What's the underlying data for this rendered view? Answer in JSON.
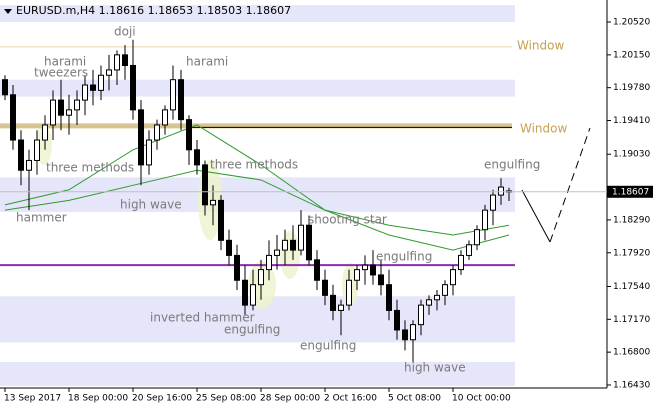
{
  "chart_data": {
    "type": "candlestick",
    "title": "EURUSD.m,H4 1.18616 1.18653 1.18503 1.18607",
    "categories": [
      "13 Sep 2017",
      null,
      null,
      null,
      null,
      null,
      null,
      null,
      "18 Sep 00:00",
      null,
      null,
      null,
      null,
      null,
      null,
      null,
      "20 Sep 16:00",
      null,
      null,
      null,
      null,
      null,
      null,
      null,
      "25 Sep 08:00",
      null,
      null,
      null,
      null,
      null,
      null,
      null,
      "28 Sep 00:00",
      null,
      null,
      null,
      null,
      null,
      null,
      null,
      "2 Oct 16:00",
      null,
      null,
      null,
      null,
      null,
      null,
      null,
      "5 Oct 08:00",
      null,
      null,
      null,
      null,
      null,
      null,
      null,
      "10 Oct 00:00",
      null,
      null,
      null,
      null,
      null,
      null,
      null
    ],
    "open": [
      1.1987,
      1.197,
      1.1919,
      1.1885,
      1.1896,
      1.1919,
      1.1936,
      1.1964,
      1.1947,
      1.1953,
      1.1964,
      1.1981,
      1.1975,
      1.1992,
      1.1998,
      1.2015,
      1.2003,
      1.1953,
      1.1891,
      1.1919,
      1.1936,
      1.1953,
      1.1987,
      1.1942,
      1.1908,
      1.1891,
      1.1846,
      1.1851,
      1.1806,
      1.1789,
      1.1761,
      1.1733,
      1.1756,
      1.1773,
      1.1789,
      1.1795,
      1.1806,
      1.1795,
      1.1823,
      1.1784,
      1.1761,
      1.1744,
      1.1727,
      1.1733,
      1.1761,
      1.1773,
      1.1778,
      1.1767,
      1.1756,
      1.1727,
      1.1705,
      1.1694,
      1.1711,
      1.1733,
      1.1739,
      1.1744,
      1.1756,
      1.1773,
      1.1789,
      1.1801,
      1.1818,
      1.184,
      1.1857,
      1.18616
    ],
    "high": [
      1.1992,
      1.1981,
      1.193,
      1.1908,
      1.193,
      1.1947,
      1.1975,
      1.1987,
      1.197,
      1.1975,
      1.1992,
      1.1998,
      1.2003,
      1.2015,
      1.202,
      1.2026,
      1.2032,
      1.1964,
      1.193,
      1.1942,
      1.1958,
      1.2003,
      1.1998,
      1.1947,
      1.1919,
      1.1896,
      1.1868,
      1.1857,
      1.1818,
      1.1801,
      1.1778,
      1.1773,
      1.1784,
      1.1806,
      1.1812,
      1.1818,
      1.1823,
      1.184,
      1.1834,
      1.1795,
      1.1773,
      1.1756,
      1.1739,
      1.1773,
      1.1778,
      1.1789,
      1.1795,
      1.1784,
      1.1773,
      1.1739,
      1.1716,
      1.1716,
      1.1739,
      1.1744,
      1.175,
      1.1761,
      1.1778,
      1.1795,
      1.1806,
      1.1823,
      1.1846,
      1.1863,
      1.1876,
      1.18653
    ],
    "low": [
      1.1964,
      1.1908,
      1.1868,
      1.184,
      1.188,
      1.1908,
      1.1919,
      1.193,
      1.1925,
      1.1936,
      1.1947,
      1.1958,
      1.1964,
      1.1975,
      1.1981,
      1.1987,
      1.1942,
      1.1868,
      1.188,
      1.1908,
      1.1925,
      1.1942,
      1.193,
      1.1891,
      1.188,
      1.1834,
      1.1823,
      1.1795,
      1.1778,
      1.175,
      1.1722,
      1.1727,
      1.1739,
      1.1761,
      1.1773,
      1.1778,
      1.1784,
      1.1789,
      1.1778,
      1.175,
      1.1733,
      1.1716,
      1.1699,
      1.1727,
      1.175,
      1.1756,
      1.1756,
      1.1744,
      1.1716,
      1.1694,
      1.1682,
      1.1669,
      1.1699,
      1.1722,
      1.1727,
      1.1733,
      1.1744,
      1.1767,
      1.1784,
      1.1795,
      1.1806,
      1.1823,
      1.1846,
      1.18503
    ],
    "close": [
      1.197,
      1.1919,
      1.1885,
      1.1896,
      1.1919,
      1.1936,
      1.1964,
      1.1947,
      1.1953,
      1.1964,
      1.1981,
      1.1975,
      1.1992,
      1.1998,
      1.2015,
      1.2003,
      1.1953,
      1.1891,
      1.1919,
      1.1936,
      1.1953,
      1.1987,
      1.1942,
      1.1908,
      1.1891,
      1.1846,
      1.1851,
      1.1806,
      1.1789,
      1.1761,
      1.1733,
      1.1756,
      1.1773,
      1.1789,
      1.1795,
      1.1806,
      1.1795,
      1.1823,
      1.1784,
      1.1761,
      1.1744,
      1.1727,
      1.1733,
      1.1761,
      1.1773,
      1.1778,
      1.1767,
      1.1756,
      1.1727,
      1.1705,
      1.1694,
      1.1711,
      1.1733,
      1.1739,
      1.1744,
      1.1756,
      1.1773,
      1.1789,
      1.1801,
      1.1818,
      1.184,
      1.1857,
      1.1866,
      1.18607
    ],
    "moving_averages": [
      {
        "color": "#2e9a2e",
        "x": [
          0,
          8,
          16,
          24,
          32,
          40,
          48,
          56,
          63
        ],
        "values": [
          1.1846,
          1.1863,
          1.1908,
          1.1936,
          1.1891,
          1.184,
          1.1823,
          1.1812,
          1.1823
        ]
      },
      {
        "color": "#2e9a2e",
        "x": [
          0,
          8,
          16,
          24,
          32,
          40,
          48,
          56,
          63
        ],
        "values": [
          1.184,
          1.1851,
          1.1868,
          1.1885,
          1.1874,
          1.184,
          1.1812,
          1.1795,
          1.1812
        ]
      }
    ],
    "zones": [
      [
        1.2071,
        1.2052
      ],
      [
        1.1987,
        1.1968
      ],
      [
        1.1877,
        1.1838
      ],
      [
        1.1743,
        1.1691
      ],
      [
        1.1669,
        1.1642
      ]
    ],
    "levels": [
      {
        "value": 1.2024,
        "color": "#e6d6a8",
        "label": "Window"
      },
      {
        "value": 1.1935,
        "color": "#d8c48e",
        "label": "Window"
      },
      {
        "value": 1.1778,
        "color": "#8a2bb0"
      }
    ],
    "annotations": [
      "doji",
      "harami",
      "tweezers",
      "harami",
      "three methods",
      "hammer",
      "high wave",
      "three methods",
      "shooting star",
      "engulfing",
      "inverted hammer",
      "engulfing",
      "engulfing",
      "high wave",
      "engulfing"
    ],
    "ylim": [
      1.16396,
      1.20768
    ],
    "yticks": [
      {
        "value": 1.2052,
        "label": "1.20520"
      },
      {
        "value": 1.2015,
        "label": "1.20150"
      },
      {
        "value": 1.1978,
        "label": "1.19780"
      },
      {
        "value": 1.1941,
        "label": "1.19410"
      },
      {
        "value": 1.1903,
        "label": "1.19030"
      },
      {
        "value": 1.1829,
        "label": "1.18290"
      },
      {
        "value": 1.1792,
        "label": "1.17920"
      },
      {
        "value": 1.1754,
        "label": "1.17540"
      },
      {
        "value": 1.1717,
        "label": "1.17170"
      },
      {
        "value": 1.168,
        "label": "1.16800"
      },
      {
        "value": 1.1643,
        "label": "1.16430"
      }
    ]
  }
}
